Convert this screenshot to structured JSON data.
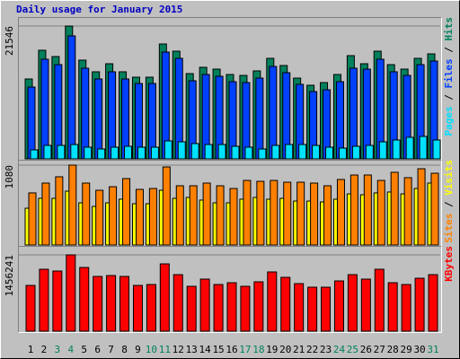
{
  "chart_data": [
    {
      "type": "bar",
      "title": "Daily usage for January 2015",
      "ylim": [
        0,
        22568
      ],
      "yticks": [
        21546
      ],
      "series": [
        {
          "name": "Hits",
          "color": "#00805c",
          "values": [
            12958,
            17618,
            16598,
            21546,
            16016,
            14123,
            15434,
            14123,
            13250,
            13250,
            18637,
            17472,
            13832,
            14851,
            14560,
            13686,
            13541,
            14269,
            16307,
            15142,
            13104,
            11939,
            12376,
            13686,
            16744,
            15434,
            17472,
            15288,
            14560,
            16307,
            17035
          ]
        },
        {
          "name": "Files",
          "color": "#0040ff",
          "values": [
            11648,
            16162,
            15288,
            19947,
            14706,
            12958,
            14123,
            12958,
            12230,
            12230,
            17326,
            16307,
            12667,
            13686,
            13395,
            12522,
            12376,
            13104,
            14997,
            13978,
            12085,
            10920,
            11211,
            12522,
            14706,
            14560,
            16162,
            14123,
            13541,
            15288,
            15870
          ]
        },
        {
          "name": "Pages",
          "color": "#00e0ff",
          "values": [
            1456,
            2184,
            2184,
            2330,
            1893,
            1602,
            1893,
            2038,
            1893,
            1893,
            2912,
            2766,
            2475,
            2330,
            2330,
            2038,
            1893,
            1602,
            2184,
            2330,
            2330,
            2184,
            1893,
            1747,
            2038,
            2184,
            2766,
            3058,
            3494,
            3640,
            3058
          ]
        }
      ]
    },
    {
      "type": "bar",
      "ylim": [
        0,
        1116
      ],
      "yticks": [
        1080
      ],
      "series": [
        {
          "name": "Visits",
          "color": "#ffff00",
          "values": [
            497,
            631,
            631,
            728,
            570,
            522,
            570,
            619,
            558,
            558,
            740,
            631,
            643,
            607,
            570,
            570,
            619,
            643,
            619,
            631,
            594,
            594,
            582,
            619,
            691,
            679,
            704,
            716,
            691,
            764,
            837
          ]
        },
        {
          "name": "Sites",
          "color": "#ff8000",
          "values": [
            704,
            837,
            922,
            1080,
            837,
            740,
            788,
            898,
            752,
            764,
            1055,
            801,
            801,
            837,
            801,
            764,
            873,
            861,
            873,
            849,
            849,
            837,
            801,
            886,
            946,
            946,
            873,
            983,
            910,
            1031,
            970
          ]
        }
      ]
    },
    {
      "type": "bar",
      "ylim": [
        0,
        1576144
      ],
      "yticks": [
        1456241
      ],
      "categories": [
        "1",
        "2",
        "3",
        "4",
        "5",
        "6",
        "7",
        "8",
        "9",
        "10",
        "11",
        "12",
        "13",
        "14",
        "15",
        "16",
        "17",
        "18",
        "19",
        "20",
        "21",
        "22",
        "23",
        "24",
        "25",
        "26",
        "27",
        "28",
        "29",
        "30",
        "31"
      ],
      "category_colors": [
        "#000000",
        "#000000",
        "#00805c",
        "#00805c",
        "#000000",
        "#000000",
        "#000000",
        "#000000",
        "#000000",
        "#00805c",
        "#00805c",
        "#000000",
        "#000000",
        "#000000",
        "#000000",
        "#000000",
        "#00805c",
        "#00805c",
        "#000000",
        "#000000",
        "#000000",
        "#000000",
        "#000000",
        "#00805c",
        "#00805c",
        "#000000",
        "#000000",
        "#000000",
        "#000000",
        "#000000",
        "#00805c"
      ],
      "series": [
        {
          "name": "KBytes",
          "color": "#ff0000",
          "values": [
            873732,
            1182108,
            1147844,
            1456241,
            1216372,
            1045052,
            1062184,
            1045052,
            873732,
            890864,
            1284900,
            1079316,
            856600,
            993656,
            890864,
            925128,
            856600,
            942260,
            1130712,
            1027920,
            908000,
            839468,
            839468,
            959392,
            1079316,
            993656,
            1182108,
            925128,
            890864,
            1010788,
            1079316
          ]
        }
      ]
    }
  ]
}
